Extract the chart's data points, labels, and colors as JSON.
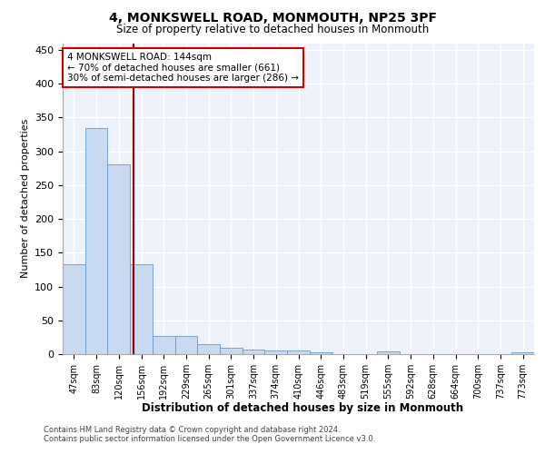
{
  "title": "4, MONKSWELL ROAD, MONMOUTH, NP25 3PF",
  "subtitle": "Size of property relative to detached houses in Monmouth",
  "xlabel": "Distribution of detached houses by size in Monmouth",
  "ylabel": "Number of detached properties",
  "categories": [
    "47sqm",
    "83sqm",
    "120sqm",
    "156sqm",
    "192sqm",
    "229sqm",
    "265sqm",
    "301sqm",
    "337sqm",
    "374sqm",
    "410sqm",
    "446sqm",
    "483sqm",
    "519sqm",
    "555sqm",
    "592sqm",
    "628sqm",
    "664sqm",
    "700sqm",
    "737sqm",
    "773sqm"
  ],
  "values": [
    133,
    335,
    281,
    133,
    27,
    27,
    15,
    10,
    7,
    6,
    5,
    3,
    0,
    0,
    4,
    0,
    0,
    0,
    0,
    0,
    3
  ],
  "bar_color": "#c9d9f0",
  "bar_edge_color": "#6699cc",
  "vline_index": 2.65,
  "vline_color": "#990000",
  "annotation_text": "4 MONKSWELL ROAD: 144sqm\n← 70% of detached houses are smaller (661)\n30% of semi-detached houses are larger (286) →",
  "annotation_box_color": "#ffffff",
  "annotation_box_edge": "#cc0000",
  "ylim": [
    0,
    460
  ],
  "yticks": [
    0,
    50,
    100,
    150,
    200,
    250,
    300,
    350,
    400,
    450
  ],
  "footer_line1": "Contains HM Land Registry data © Crown copyright and database right 2024.",
  "footer_line2": "Contains public sector information licensed under the Open Government Licence v3.0.",
  "plot_bg_color": "#eef2fb",
  "grid_color": "#ffffff",
  "fig_bg_color": "#ffffff"
}
